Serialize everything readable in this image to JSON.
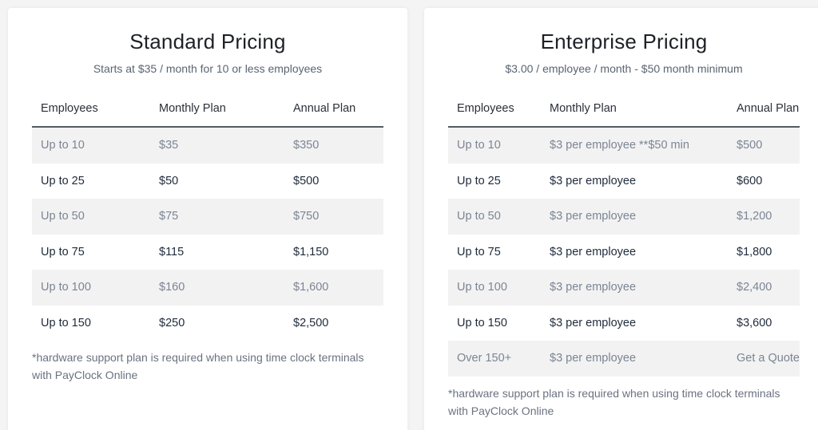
{
  "standard": {
    "title": "Standard Pricing",
    "subtitle": "Starts at $35 / month for 10 or less employees",
    "headers": [
      "Employees",
      "Monthly Plan",
      "Annual Plan"
    ],
    "rows": [
      [
        "Up to 10",
        "$35",
        "$350"
      ],
      [
        "Up to 25",
        "$50",
        "$500"
      ],
      [
        "Up to 50",
        "$75",
        "$750"
      ],
      [
        "Up to 75",
        "$115",
        "$1,150"
      ],
      [
        "Up to 100",
        "$160",
        "$1,600"
      ],
      [
        "Up to 150",
        "$250",
        "$2,500"
      ]
    ],
    "note": "*hardware support plan is required when using time clock terminals with PayClock Online"
  },
  "enterprise": {
    "title": "Enterprise Pricing",
    "subtitle": "$3.00 / employee / month - $50 month minimum",
    "headers": [
      "Employees",
      "Monthly Plan",
      "Annual Plan"
    ],
    "rows": [
      [
        "Up to 10",
        "$3 per employee **$50 min",
        "$500"
      ],
      [
        "Up to 25",
        "$3 per employee",
        "$600"
      ],
      [
        "Up to 50",
        "$3 per employee",
        "$1,200"
      ],
      [
        "Up to 75",
        "$3 per employee",
        "$1,800"
      ],
      [
        "Up to 100",
        "$3 per employee",
        "$2,400"
      ],
      [
        "Up to 150",
        "$3 per employee",
        "$3,600"
      ],
      [
        "Over 150+",
        "$3 per employee",
        "Get a Quote"
      ]
    ],
    "note": "*hardware support plan is required when using time clock terminals with PayClock Online"
  },
  "colors": {
    "link": "#4a76a8",
    "shaded_row": "#f2f2f2",
    "header_rule": "#555a62"
  }
}
